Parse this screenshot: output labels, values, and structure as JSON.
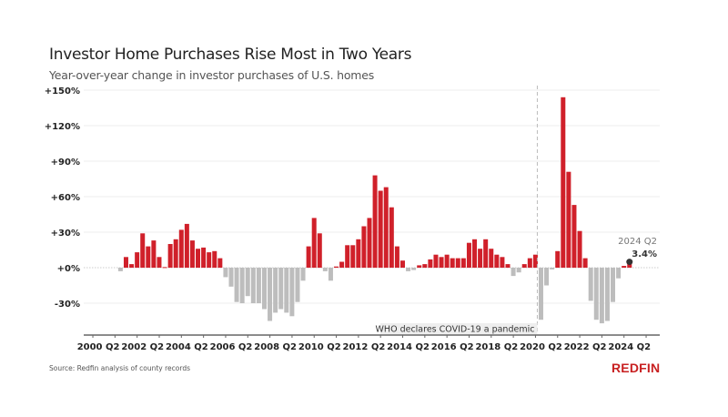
{
  "header": {
    "title": "Investor Home Purchases Rise Most in Two Years",
    "subtitle": "Year-over-year change in investor purchases of U.S. homes"
  },
  "footer": {
    "source": "Source: Redfin analysis of county records",
    "logo": "REDFIN"
  },
  "colors": {
    "positive": "#d0202a",
    "negative": "#bdbdbd",
    "grid": "#eeeeee",
    "axis": "#666666",
    "highlight_dot": "#333333",
    "brand": "#c82021"
  },
  "chart_data": {
    "type": "bar",
    "title": "Investor Home Purchases Rise Most in Two Years",
    "subtitle": "Year-over-year change in investor purchases of U.S. homes",
    "xlabel": "",
    "ylabel": "",
    "ylim": [
      -50,
      150
    ],
    "yticks": [
      -30,
      0,
      30,
      60,
      90,
      120,
      150
    ],
    "ytick_labels": [
      "-30%",
      "+0%",
      "+30%",
      "+60%",
      "+90%",
      "+120%",
      "+150%"
    ],
    "xtick_labels": [
      "2000 Q2",
      "2002 Q2",
      "2004 Q2",
      "2006 Q2",
      "2008 Q2",
      "2010 Q2",
      "2012 Q2",
      "2014 Q2",
      "2016 Q2",
      "2018 Q2",
      "2020 Q2",
      "2022 Q2",
      "2024 Q2"
    ],
    "grid": true,
    "start_quarter": "2000 Q1",
    "end_quarter": "2024 Q2",
    "values": [
      null,
      null,
      null,
      null,
      null,
      -3,
      9,
      3,
      13,
      29,
      18,
      23,
      9,
      0.5,
      20,
      24,
      32,
      37,
      23,
      16,
      17,
      13,
      14,
      8,
      -8,
      -16,
      -29,
      -30,
      -24,
      -30,
      -30,
      -35,
      -45,
      -38,
      -35,
      -38,
      -41,
      -29,
      -11,
      18,
      42,
      29,
      -3,
      -11,
      1,
      5,
      19,
      19,
      24,
      35,
      42,
      78,
      65,
      68,
      51,
      18,
      6,
      -3,
      -2,
      2,
      3,
      7,
      11,
      9,
      11,
      8,
      8,
      8,
      21,
      24,
      16,
      24,
      16,
      11,
      9,
      3,
      -7,
      -4,
      3,
      8,
      11,
      -44,
      -15,
      -1.5,
      14,
      144,
      81,
      53,
      31,
      8,
      -28,
      -44,
      -47,
      -45,
      -29,
      -9,
      1.5,
      3.4
    ],
    "annotations": [
      {
        "type": "vline",
        "at": "2020 Q1",
        "label": "WHO declares COVID-19 a pandemic",
        "style": "dashed"
      },
      {
        "type": "point",
        "at": "2024 Q2",
        "label": "2024 Q2",
        "value_label": "3.4%"
      }
    ]
  }
}
